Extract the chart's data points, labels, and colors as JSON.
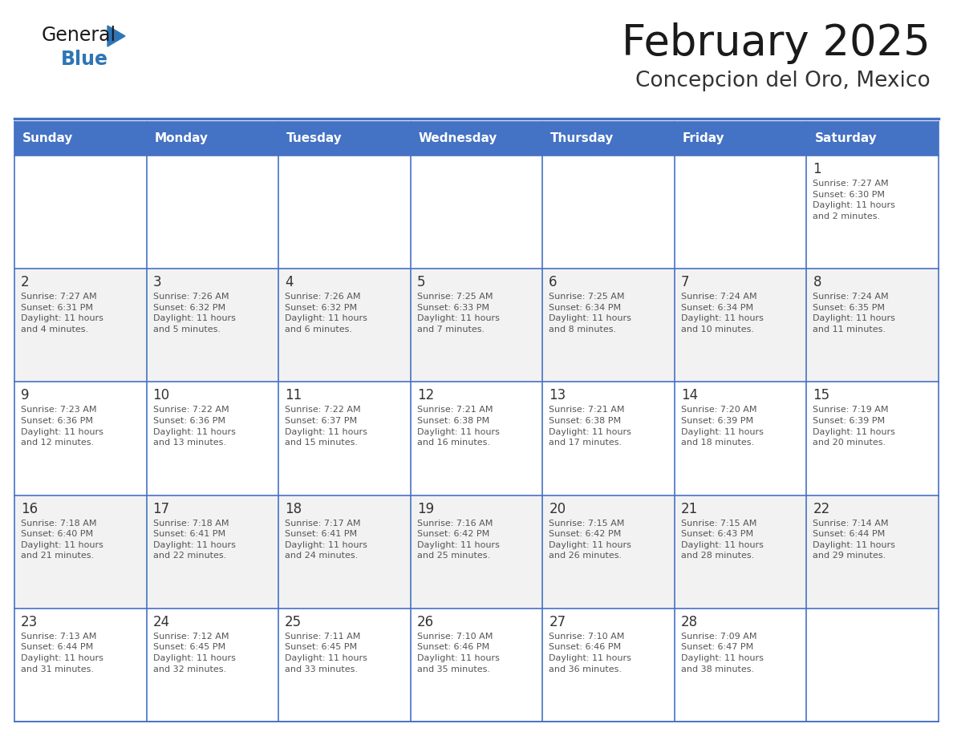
{
  "title": "February 2025",
  "subtitle": "Concepcion del Oro, Mexico",
  "header_bg": "#4472C4",
  "header_text": "#FFFFFF",
  "cell_bg_light": "#FFFFFF",
  "cell_bg_dark": "#F2F2F2",
  "cell_border": "#4472C4",
  "day_headers": [
    "Sunday",
    "Monday",
    "Tuesday",
    "Wednesday",
    "Thursday",
    "Friday",
    "Saturday"
  ],
  "title_color": "#1a1a1a",
  "subtitle_color": "#333333",
  "number_color": "#333333",
  "text_color": "#555555",
  "logo_general_color": "#1a1a1a",
  "logo_blue_color": "#2E75B6",
  "calendar": [
    [
      null,
      null,
      null,
      null,
      null,
      null,
      1
    ],
    [
      2,
      3,
      4,
      5,
      6,
      7,
      8
    ],
    [
      9,
      10,
      11,
      12,
      13,
      14,
      15
    ],
    [
      16,
      17,
      18,
      19,
      20,
      21,
      22
    ],
    [
      23,
      24,
      25,
      26,
      27,
      28,
      null
    ]
  ],
  "sunrise": {
    "1": "7:27 AM",
    "2": "7:27 AM",
    "3": "7:26 AM",
    "4": "7:26 AM",
    "5": "7:25 AM",
    "6": "7:25 AM",
    "7": "7:24 AM",
    "8": "7:24 AM",
    "9": "7:23 AM",
    "10": "7:22 AM",
    "11": "7:22 AM",
    "12": "7:21 AM",
    "13": "7:21 AM",
    "14": "7:20 AM",
    "15": "7:19 AM",
    "16": "7:18 AM",
    "17": "7:18 AM",
    "18": "7:17 AM",
    "19": "7:16 AM",
    "20": "7:15 AM",
    "21": "7:15 AM",
    "22": "7:14 AM",
    "23": "7:13 AM",
    "24": "7:12 AM",
    "25": "7:11 AM",
    "26": "7:10 AM",
    "27": "7:10 AM",
    "28": "7:09 AM"
  },
  "sunset": {
    "1": "6:30 PM",
    "2": "6:31 PM",
    "3": "6:32 PM",
    "4": "6:32 PM",
    "5": "6:33 PM",
    "6": "6:34 PM",
    "7": "6:34 PM",
    "8": "6:35 PM",
    "9": "6:36 PM",
    "10": "6:36 PM",
    "11": "6:37 PM",
    "12": "6:38 PM",
    "13": "6:38 PM",
    "14": "6:39 PM",
    "15": "6:39 PM",
    "16": "6:40 PM",
    "17": "6:41 PM",
    "18": "6:41 PM",
    "19": "6:42 PM",
    "20": "6:42 PM",
    "21": "6:43 PM",
    "22": "6:44 PM",
    "23": "6:44 PM",
    "24": "6:45 PM",
    "25": "6:45 PM",
    "26": "6:46 PM",
    "27": "6:46 PM",
    "28": "6:47 PM"
  },
  "daylight": {
    "1": "11 hours\nand 2 minutes.",
    "2": "11 hours\nand 4 minutes.",
    "3": "11 hours\nand 5 minutes.",
    "4": "11 hours\nand 6 minutes.",
    "5": "11 hours\nand 7 minutes.",
    "6": "11 hours\nand 8 minutes.",
    "7": "11 hours\nand 10 minutes.",
    "8": "11 hours\nand 11 minutes.",
    "9": "11 hours\nand 12 minutes.",
    "10": "11 hours\nand 13 minutes.",
    "11": "11 hours\nand 15 minutes.",
    "12": "11 hours\nand 16 minutes.",
    "13": "11 hours\nand 17 minutes.",
    "14": "11 hours\nand 18 minutes.",
    "15": "11 hours\nand 20 minutes.",
    "16": "11 hours\nand 21 minutes.",
    "17": "11 hours\nand 22 minutes.",
    "18": "11 hours\nand 24 minutes.",
    "19": "11 hours\nand 25 minutes.",
    "20": "11 hours\nand 26 minutes.",
    "21": "11 hours\nand 28 minutes.",
    "22": "11 hours\nand 29 minutes.",
    "23": "11 hours\nand 31 minutes.",
    "24": "11 hours\nand 32 minutes.",
    "25": "11 hours\nand 33 minutes.",
    "26": "11 hours\nand 35 minutes.",
    "27": "11 hours\nand 36 minutes.",
    "28": "11 hours\nand 38 minutes."
  },
  "fig_width": 11.88,
  "fig_height": 9.18,
  "dpi": 100
}
